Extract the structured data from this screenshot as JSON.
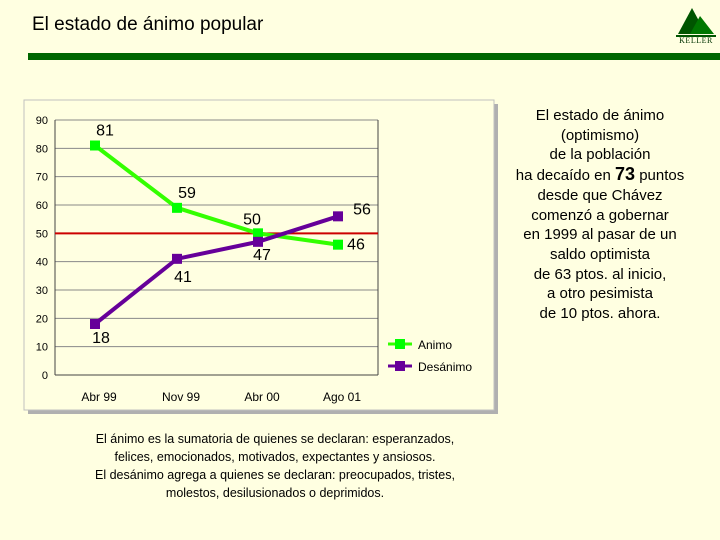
{
  "header": {
    "title": "El estado de ánimo popular",
    "logo_text": "KELLER",
    "logo_small": "A S E S O R E S"
  },
  "colors": {
    "rule": "#006600",
    "animo": "#00FF00",
    "animo_line": "#33FF00",
    "desanimo": "#660099",
    "midline": "#CC0000",
    "plot_bg": "#FFFFE1"
  },
  "chart_data": {
    "type": "line",
    "categories": [
      "Abr 99",
      "Nov 99",
      "Abr 00",
      "Ago 01"
    ],
    "series": [
      {
        "name": "Animo",
        "values": [
          81,
          59,
          50,
          46
        ]
      },
      {
        "name": "Desánimo",
        "values": [
          18,
          41,
          47,
          56
        ]
      }
    ],
    "ylim": [
      0,
      90
    ],
    "yticks": [
      "0",
      "10",
      "20",
      "30",
      "40",
      "50",
      "60",
      "70",
      "80",
      "90"
    ],
    "reference_line": 50,
    "legend_position": "bottom-right",
    "data_labels": {
      "animo": [
        "81",
        "59",
        "50",
        "46"
      ],
      "desanimo": [
        "18",
        "41",
        "47",
        "56"
      ]
    }
  },
  "side_text": {
    "line1": "El estado de ánimo",
    "line2": "(optimismo)",
    "line3": "de la población",
    "line4_pre": "ha decaído en ",
    "line4_num": "73",
    "line4_post": " puntos",
    "line5": "desde que Chávez",
    "line6": "comenzó a gobernar",
    "line7": "en 1999 al pasar de un",
    "line8": "saldo optimista",
    "line9": "de 63 ptos. al inicio,",
    "line10": "a otro pesimista",
    "line11": "de 10 ptos. ahora."
  },
  "footnote": {
    "line1": "El ánimo es la sumatoria de quienes se declaran: esperanzados,",
    "line2": "felices, emocionados, motivados, expectantes y ansiosos.",
    "line3": "El desánimo agrega a quienes se declaran: preocupados, tristes,",
    "line4": "molestos, desilusionados o deprimidos."
  }
}
